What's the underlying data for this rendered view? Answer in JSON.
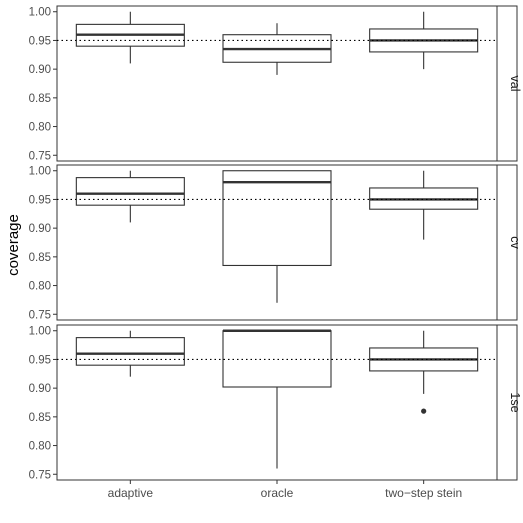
{
  "chart_data": {
    "type": "boxplot",
    "ylabel": "coverage",
    "xlabel": "",
    "categories": [
      "adaptive",
      "oracle",
      "two−step stein"
    ],
    "ylim": [
      0.74,
      1.01
    ],
    "yticks": [
      0.75,
      0.8,
      0.85,
      0.9,
      0.95,
      1.0
    ],
    "ytick_labels": [
      "0.75",
      "0.80",
      "0.85",
      "0.90",
      "0.95",
      "1.00"
    ],
    "reference_line": 0.95,
    "grid": false,
    "facets": [
      {
        "label": "val",
        "boxes": [
          {
            "category": "adaptive",
            "lower_whisker": 0.91,
            "q1": 0.94,
            "median": 0.96,
            "q3": 0.978,
            "upper_whisker": 1.0,
            "outliers": []
          },
          {
            "category": "oracle",
            "lower_whisker": 0.89,
            "q1": 0.912,
            "median": 0.935,
            "q3": 0.96,
            "upper_whisker": 0.98,
            "outliers": []
          },
          {
            "category": "two−step stein",
            "lower_whisker": 0.9,
            "q1": 0.93,
            "median": 0.95,
            "q3": 0.97,
            "upper_whisker": 1.0,
            "outliers": []
          }
        ]
      },
      {
        "label": "cv",
        "boxes": [
          {
            "category": "adaptive",
            "lower_whisker": 0.91,
            "q1": 0.94,
            "median": 0.96,
            "q3": 0.988,
            "upper_whisker": 1.0,
            "outliers": []
          },
          {
            "category": "oracle",
            "lower_whisker": 0.77,
            "q1": 0.835,
            "median": 0.98,
            "q3": 1.0,
            "upper_whisker": 1.0,
            "outliers": []
          },
          {
            "category": "two−step stein",
            "lower_whisker": 0.88,
            "q1": 0.933,
            "median": 0.95,
            "q3": 0.97,
            "upper_whisker": 1.0,
            "outliers": []
          }
        ]
      },
      {
        "label": "1se",
        "boxes": [
          {
            "category": "adaptive",
            "lower_whisker": 0.92,
            "q1": 0.94,
            "median": 0.96,
            "q3": 0.988,
            "upper_whisker": 1.0,
            "outliers": []
          },
          {
            "category": "oracle",
            "lower_whisker": 0.76,
            "q1": 0.902,
            "median": 1.0,
            "q3": 1.0,
            "upper_whisker": 1.0,
            "outliers": []
          },
          {
            "category": "two−step stein",
            "lower_whisker": 0.89,
            "q1": 0.93,
            "median": 0.95,
            "q3": 0.97,
            "upper_whisker": 1.0,
            "outliers": [
              0.86
            ]
          }
        ]
      }
    ]
  }
}
